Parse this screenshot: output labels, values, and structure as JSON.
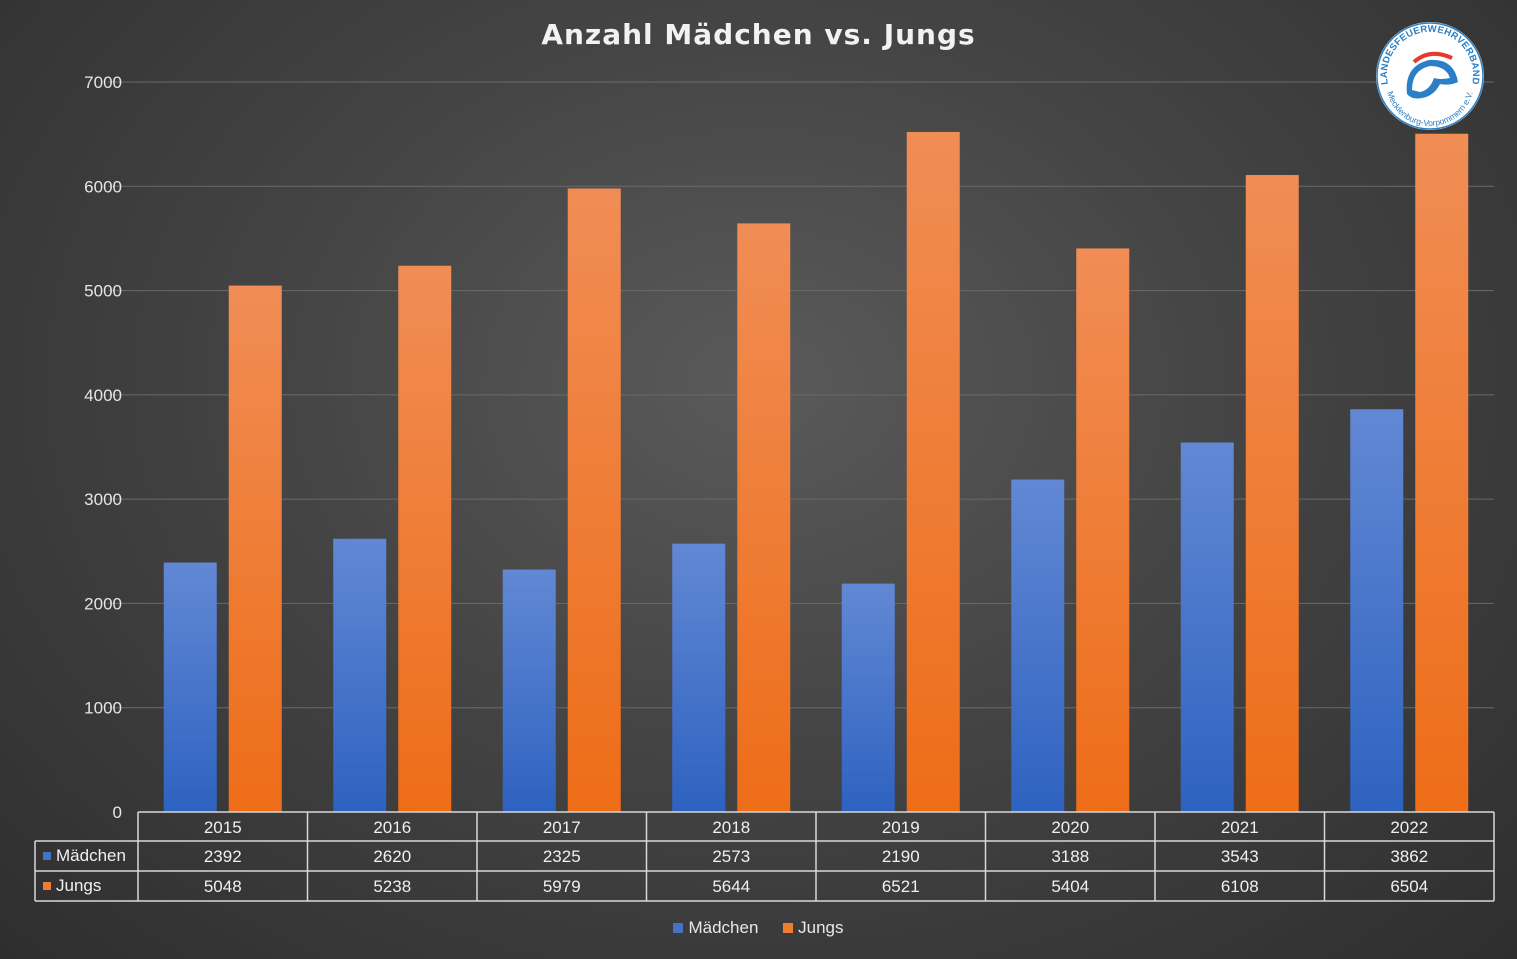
{
  "chart_data": {
    "type": "bar",
    "title": "Anzahl Mädchen vs. Jungs",
    "categories": [
      "2015",
      "2016",
      "2017",
      "2018",
      "2019",
      "2020",
      "2021",
      "2022"
    ],
    "series": [
      {
        "name": "Mädchen",
        "color": "#4472c4",
        "values": [
          2392,
          2620,
          2325,
          2573,
          2190,
          3188,
          3543,
          3862
        ]
      },
      {
        "name": "Jungs",
        "color": "#ed7d31",
        "values": [
          5048,
          5238,
          5979,
          5644,
          6521,
          5404,
          6108,
          6504
        ]
      }
    ],
    "ylim": [
      0,
      7000
    ],
    "yticks": [
      0,
      1000,
      2000,
      3000,
      4000,
      5000,
      6000,
      7000
    ],
    "grid": true,
    "legend_position": "bottom",
    "data_table": true
  },
  "logo": {
    "text_top": "LANDESFEUERWEHRVERBAND",
    "text_bottom": "Mecklenburg-Vorpommern e.V."
  }
}
